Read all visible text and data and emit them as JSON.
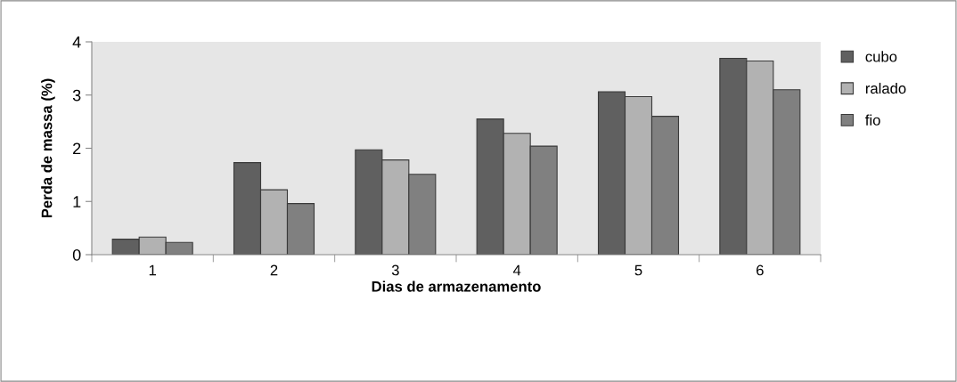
{
  "chart_data": {
    "type": "bar",
    "xlabel": "Dias de armazenamento",
    "ylabel": "Perda de massa (%)",
    "categories": [
      "1",
      "2",
      "3",
      "4",
      "5",
      "6"
    ],
    "series": [
      {
        "name": "cubo",
        "color": "#606060",
        "values": [
          0.29,
          1.73,
          1.97,
          2.55,
          3.06,
          3.69
        ]
      },
      {
        "name": "ralado",
        "color": "#b2b2b2",
        "values": [
          0.33,
          1.22,
          1.78,
          2.28,
          2.97,
          3.64
        ]
      },
      {
        "name": "fio",
        "color": "#808080",
        "values": [
          0.23,
          0.96,
          1.51,
          2.04,
          2.6,
          3.1
        ]
      }
    ],
    "ylim": [
      0,
      4
    ],
    "yticks": [
      0,
      1,
      2,
      3,
      4
    ],
    "grid": false,
    "legend": "right"
  }
}
